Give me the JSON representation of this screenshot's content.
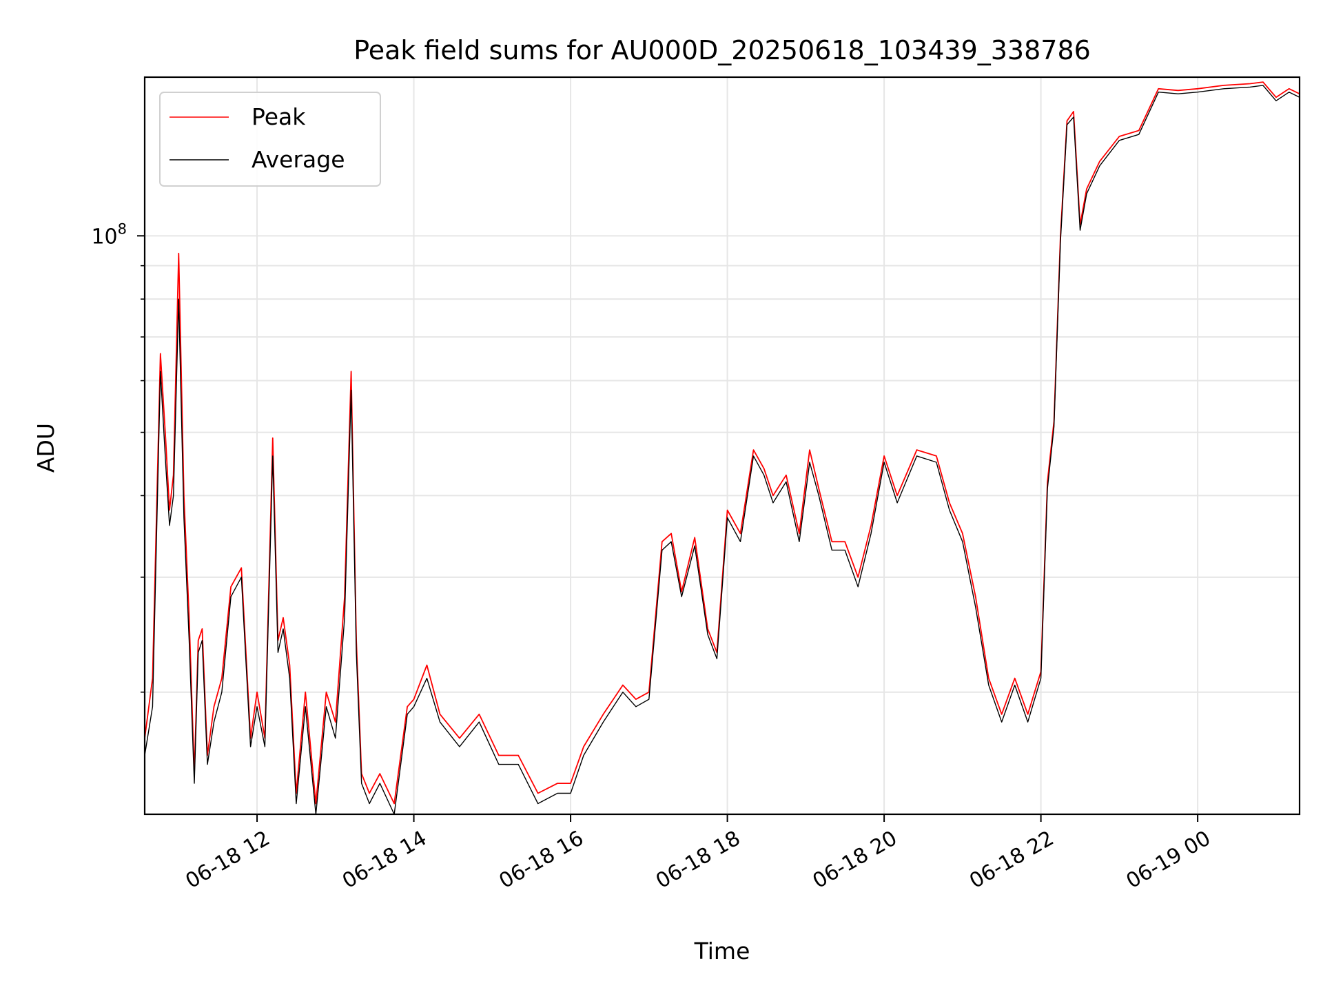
{
  "chart_data": {
    "type": "line",
    "title": "Peak field sums for AU000D_20250618_103439_338786",
    "xlabel": "Time",
    "ylabel": "ADU",
    "y_scale": "log",
    "ylim": [
      13000000,
      175000000
    ],
    "xlim": [
      "2025-06-18 10:34",
      "2025-06-19 01:18"
    ],
    "grid": true,
    "legend_position": "upper-left",
    "x_ticks": [
      {
        "value": "2025-06-18 12:00",
        "label": "06-18 12"
      },
      {
        "value": "2025-06-18 14:00",
        "label": "06-18 14"
      },
      {
        "value": "2025-06-18 16:00",
        "label": "06-18 16"
      },
      {
        "value": "2025-06-18 18:00",
        "label": "06-18 18"
      },
      {
        "value": "2025-06-18 20:00",
        "label": "06-18 20"
      },
      {
        "value": "2025-06-18 22:00",
        "label": "06-18 22"
      },
      {
        "value": "2025-06-19 00:00",
        "label": "06-19 00"
      }
    ],
    "y_major_ticks": [
      {
        "value": 100000000,
        "label_base": "10",
        "label_exp": "8"
      }
    ],
    "y_minor_ticks": [
      20000000,
      30000000,
      40000000,
      50000000,
      60000000,
      70000000,
      80000000,
      90000000
    ],
    "series": [
      {
        "name": "Peak",
        "color": "#ff0000",
        "x": [
          "2025-06-18 10:34",
          "2025-06-18 10:40",
          "2025-06-18 10:46",
          "2025-06-18 10:50",
          "2025-06-18 10:53",
          "2025-06-18 10:56",
          "2025-06-18 11:00",
          "2025-06-18 11:04",
          "2025-06-18 11:08",
          "2025-06-18 11:12",
          "2025-06-18 11:15",
          "2025-06-18 11:18",
          "2025-06-18 11:22",
          "2025-06-18 11:27",
          "2025-06-18 11:33",
          "2025-06-18 11:40",
          "2025-06-18 11:48",
          "2025-06-18 11:55",
          "2025-06-18 12:00",
          "2025-06-18 12:06",
          "2025-06-18 12:12",
          "2025-06-18 12:16",
          "2025-06-18 12:20",
          "2025-06-18 12:25",
          "2025-06-18 12:30",
          "2025-06-18 12:37",
          "2025-06-18 12:45",
          "2025-06-18 12:53",
          "2025-06-18 13:00",
          "2025-06-18 13:07",
          "2025-06-18 13:12",
          "2025-06-18 13:16",
          "2025-06-18 13:20",
          "2025-06-18 13:26",
          "2025-06-18 13:34",
          "2025-06-18 13:45",
          "2025-06-18 13:55",
          "2025-06-18 14:00",
          "2025-06-18 14:10",
          "2025-06-18 14:20",
          "2025-06-18 14:35",
          "2025-06-18 14:50",
          "2025-06-18 15:05",
          "2025-06-18 15:20",
          "2025-06-18 15:35",
          "2025-06-18 15:50",
          "2025-06-18 16:00",
          "2025-06-18 16:10",
          "2025-06-18 16:25",
          "2025-06-18 16:40",
          "2025-06-18 16:50",
          "2025-06-18 17:00",
          "2025-06-18 17:10",
          "2025-06-18 17:17",
          "2025-06-18 17:25",
          "2025-06-18 17:35",
          "2025-06-18 17:45",
          "2025-06-18 17:52",
          "2025-06-18 18:00",
          "2025-06-18 18:10",
          "2025-06-18 18:20",
          "2025-06-18 18:28",
          "2025-06-18 18:35",
          "2025-06-18 18:45",
          "2025-06-18 18:55",
          "2025-06-18 19:03",
          "2025-06-18 19:10",
          "2025-06-18 19:20",
          "2025-06-18 19:30",
          "2025-06-18 19:40",
          "2025-06-18 19:50",
          "2025-06-18 20:00",
          "2025-06-18 20:10",
          "2025-06-18 20:25",
          "2025-06-18 20:40",
          "2025-06-18 20:50",
          "2025-06-18 21:00",
          "2025-06-18 21:10",
          "2025-06-18 21:20",
          "2025-06-18 21:30",
          "2025-06-18 21:40",
          "2025-06-18 21:50",
          "2025-06-18 22:00",
          "2025-06-18 22:05",
          "2025-06-18 22:10",
          "2025-06-18 22:15",
          "2025-06-18 22:20",
          "2025-06-18 22:25",
          "2025-06-18 22:30",
          "2025-06-18 22:35",
          "2025-06-18 22:45",
          "2025-06-18 23:00",
          "2025-06-18 23:15",
          "2025-06-18 23:30",
          "2025-06-18 23:45",
          "2025-06-19 00:00",
          "2025-06-19 00:20",
          "2025-06-19 00:40",
          "2025-06-19 00:50",
          "2025-06-19 01:00",
          "2025-06-19 01:10",
          "2025-06-19 01:18"
        ],
        "values": [
          17000000,
          21000000,
          66000000,
          49000000,
          38000000,
          43000000,
          94000000,
          40000000,
          26000000,
          15000000,
          24000000,
          25000000,
          16000000,
          19000000,
          21000000,
          29000000,
          31000000,
          17000000,
          20000000,
          17000000,
          49000000,
          24000000,
          26000000,
          22000000,
          14000000,
          20000000,
          13500000,
          20000000,
          18000000,
          28000000,
          62000000,
          24000000,
          15000000,
          14000000,
          15000000,
          13500000,
          19000000,
          19500000,
          22000000,
          18500000,
          17000000,
          18500000,
          16000000,
          16000000,
          14000000,
          14500000,
          14500000,
          16500000,
          18500000,
          20500000,
          19500000,
          20000000,
          34000000,
          35000000,
          28500000,
          34500000,
          25000000,
          23000000,
          38000000,
          35000000,
          47000000,
          44000000,
          40000000,
          43000000,
          35000000,
          47000000,
          41000000,
          34000000,
          34000000,
          30000000,
          36000000,
          46000000,
          40000000,
          47000000,
          46000000,
          39000000,
          35000000,
          28000000,
          21000000,
          18500000,
          21000000,
          18500000,
          21500000,
          42000000,
          52000000,
          100000000,
          150000000,
          155000000,
          104000000,
          118000000,
          130000000,
          142000000,
          145000000,
          168000000,
          167000000,
          168000000,
          170000000,
          171000000,
          172000000,
          163000000,
          168000000,
          165000000
        ]
      },
      {
        "name": "Average",
        "color": "#000000",
        "x": [
          "2025-06-18 10:34",
          "2025-06-18 10:40",
          "2025-06-18 10:46",
          "2025-06-18 10:50",
          "2025-06-18 10:53",
          "2025-06-18 10:56",
          "2025-06-18 11:00",
          "2025-06-18 11:04",
          "2025-06-18 11:08",
          "2025-06-18 11:12",
          "2025-06-18 11:15",
          "2025-06-18 11:18",
          "2025-06-18 11:22",
          "2025-06-18 11:27",
          "2025-06-18 11:33",
          "2025-06-18 11:40",
          "2025-06-18 11:48",
          "2025-06-18 11:55",
          "2025-06-18 12:00",
          "2025-06-18 12:06",
          "2025-06-18 12:12",
          "2025-06-18 12:16",
          "2025-06-18 12:20",
          "2025-06-18 12:25",
          "2025-06-18 12:30",
          "2025-06-18 12:37",
          "2025-06-18 12:45",
          "2025-06-18 12:53",
          "2025-06-18 13:00",
          "2025-06-18 13:07",
          "2025-06-18 13:12",
          "2025-06-18 13:16",
          "2025-06-18 13:20",
          "2025-06-18 13:26",
          "2025-06-18 13:34",
          "2025-06-18 13:45",
          "2025-06-18 13:55",
          "2025-06-18 14:00",
          "2025-06-18 14:10",
          "2025-06-18 14:20",
          "2025-06-18 14:35",
          "2025-06-18 14:50",
          "2025-06-18 15:05",
          "2025-06-18 15:20",
          "2025-06-18 15:35",
          "2025-06-18 15:50",
          "2025-06-18 16:00",
          "2025-06-18 16:10",
          "2025-06-18 16:25",
          "2025-06-18 16:40",
          "2025-06-18 16:50",
          "2025-06-18 17:00",
          "2025-06-18 17:10",
          "2025-06-18 17:17",
          "2025-06-18 17:25",
          "2025-06-18 17:35",
          "2025-06-18 17:45",
          "2025-06-18 17:52",
          "2025-06-18 18:00",
          "2025-06-18 18:10",
          "2025-06-18 18:20",
          "2025-06-18 18:28",
          "2025-06-18 18:35",
          "2025-06-18 18:45",
          "2025-06-18 18:55",
          "2025-06-18 19:03",
          "2025-06-18 19:10",
          "2025-06-18 19:20",
          "2025-06-18 19:30",
          "2025-06-18 19:40",
          "2025-06-18 19:50",
          "2025-06-18 20:00",
          "2025-06-18 20:10",
          "2025-06-18 20:25",
          "2025-06-18 20:40",
          "2025-06-18 20:50",
          "2025-06-18 21:00",
          "2025-06-18 21:10",
          "2025-06-18 21:20",
          "2025-06-18 21:30",
          "2025-06-18 21:40",
          "2025-06-18 21:50",
          "2025-06-18 22:00",
          "2025-06-18 22:05",
          "2025-06-18 22:10",
          "2025-06-18 22:15",
          "2025-06-18 22:20",
          "2025-06-18 22:25",
          "2025-06-18 22:30",
          "2025-06-18 22:35",
          "2025-06-18 22:45",
          "2025-06-18 23:00",
          "2025-06-18 23:15",
          "2025-06-18 23:30",
          "2025-06-18 23:45",
          "2025-06-19 00:00",
          "2025-06-19 00:20",
          "2025-06-19 00:40",
          "2025-06-19 00:50",
          "2025-06-19 01:00",
          "2025-06-19 01:10",
          "2025-06-19 01:18"
        ],
        "values": [
          16000000,
          19000000,
          62000000,
          45000000,
          36000000,
          40000000,
          80000000,
          37000000,
          24000000,
          14500000,
          23000000,
          24000000,
          15500000,
          18000000,
          20000000,
          28000000,
          30000000,
          16500000,
          19000000,
          16500000,
          46000000,
          23000000,
          25000000,
          21000000,
          13500000,
          19000000,
          13000000,
          19000000,
          17000000,
          26000000,
          58000000,
          23000000,
          14500000,
          13500000,
          14500000,
          13000000,
          18500000,
          19000000,
          21000000,
          18000000,
          16500000,
          18000000,
          15500000,
          15500000,
          13500000,
          14000000,
          14000000,
          16000000,
          18000000,
          20000000,
          19000000,
          19500000,
          33000000,
          34000000,
          28000000,
          33500000,
          24500000,
          22500000,
          37000000,
          34000000,
          46000000,
          43000000,
          39000000,
          42000000,
          34000000,
          45000000,
          40000000,
          33000000,
          33000000,
          29000000,
          35000000,
          45000000,
          39000000,
          46000000,
          45000000,
          38000000,
          34000000,
          27000000,
          20500000,
          18000000,
          20500000,
          18000000,
          21000000,
          41000000,
          51000000,
          98000000,
          148000000,
          152000000,
          102000000,
          116000000,
          128000000,
          140000000,
          143000000,
          166000000,
          165000000,
          166000000,
          168000000,
          169000000,
          170000000,
          161000000,
          166000000,
          163000000
        ]
      }
    ]
  }
}
